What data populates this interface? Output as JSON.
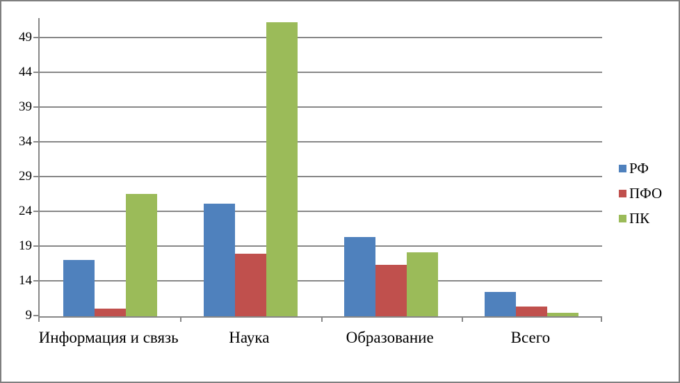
{
  "chart_data": {
    "type": "bar",
    "categories": [
      "Информация и связь",
      "Наука",
      "Образование",
      "Всего"
    ],
    "series": [
      {
        "name": "РФ",
        "color": "#4F81BD",
        "values": [
          17.1,
          25.2,
          20.4,
          12.5
        ]
      },
      {
        "name": "ПФО",
        "color": "#C0504D",
        "values": [
          10.1,
          18.0,
          16.4,
          10.4
        ]
      },
      {
        "name": "ПК",
        "color": "#9BBB59",
        "values": [
          26.6,
          51.3,
          18.2,
          9.5
        ]
      }
    ],
    "title": "",
    "xlabel": "",
    "ylabel": "",
    "ylim": [
      9,
      51.9
    ],
    "yticks": [
      9,
      14,
      19,
      24,
      29,
      34,
      39,
      44,
      49
    ],
    "grid": true,
    "legend_position": "right",
    "axis_color": "#878787",
    "text_color": "#000000",
    "background_color": "#FFFFFF",
    "border_color": "#7F7F7F"
  }
}
